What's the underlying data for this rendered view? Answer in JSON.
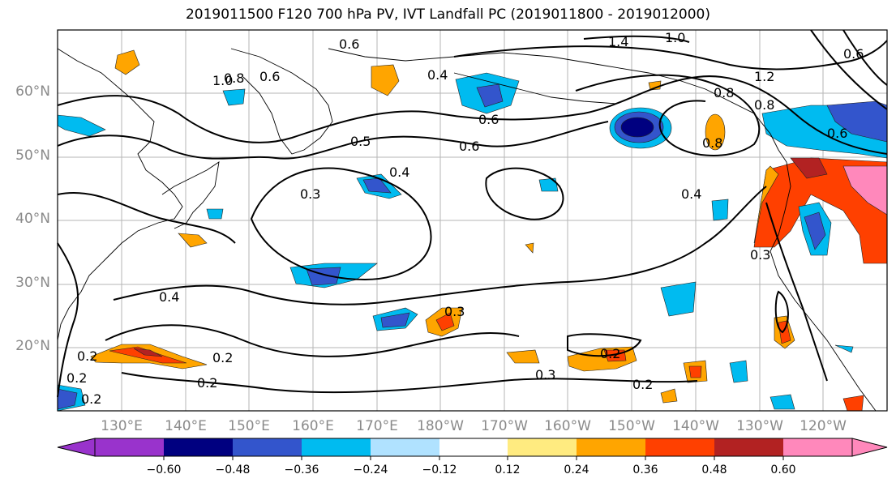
{
  "title": "2019011500 F120 700 hPa PV, IVT Landfall PC (2019011800 - 2019012000)",
  "lat_labels": [
    "60°N",
    "50°N",
    "40°N",
    "30°N",
    "20°N"
  ],
  "lon_labels": [
    "130°E",
    "140°E",
    "150°E",
    "160°E",
    "170°E",
    "180°W",
    "170°W",
    "160°W",
    "150°W",
    "140°W",
    "130°W",
    "120°W"
  ],
  "contour_labels": [
    "0.6",
    "1.4",
    "1.2",
    "1.0",
    "0.8",
    "0.6",
    "0.4",
    "0.6",
    "0.6",
    "0.5",
    "0.4",
    "0.3",
    "0.4",
    "0.8",
    "0.8",
    "0.6",
    "0.3",
    "0.4",
    "0.3",
    "0.2",
    "0.2",
    "0.2",
    "0.3",
    "0.2",
    "0.2",
    "1.0",
    "0.6",
    "0.8",
    "0.2",
    "0.2"
  ],
  "colorbar": {
    "ticks": [
      "−0.60",
      "−0.48",
      "−0.36",
      "−0.24",
      "−0.12",
      "0.12",
      "0.24",
      "0.36",
      "0.48",
      "0.60"
    ],
    "colors": [
      "#9933cc",
      "#000080",
      "#3355cc",
      "#00bbf0",
      "#b0e2ff",
      "#ffffff",
      "#ffeb80",
      "#ffa500",
      "#ff4000",
      "#b22222",
      "#ff88bb",
      "#ff99cc"
    ]
  }
}
